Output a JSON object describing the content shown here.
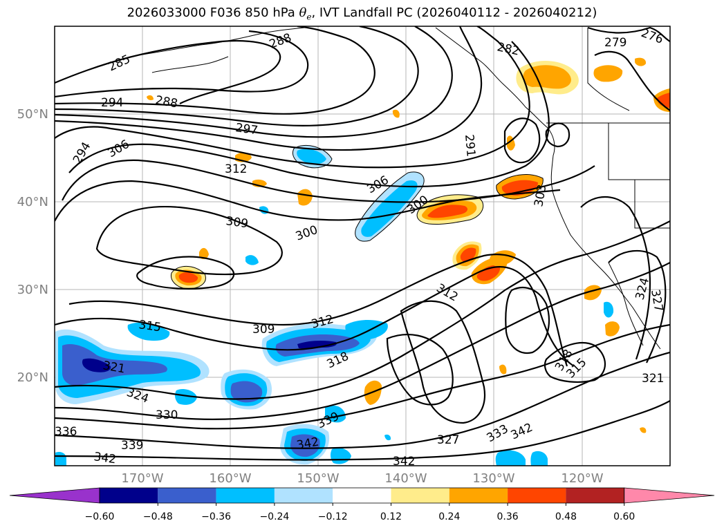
{
  "title": {
    "prefix": "2026033000 F036 850 hPa ",
    "var_base": "θ",
    "var_sub": "e",
    "suffix": ", IVT Landfall PC (2026040112 - 2026040212)"
  },
  "map": {
    "lat_labels": [
      "50°N",
      "40°N",
      "30°N",
      "20°N"
    ],
    "lon_labels": [
      "170°W",
      "160°W",
      "150°W",
      "140°W",
      "130°W",
      "120°W"
    ]
  },
  "contour_labels": [
    "285",
    "288",
    "282",
    "279",
    "276",
    "294",
    "288",
    "297",
    "291",
    "294",
    "306",
    "312",
    "306",
    "303",
    "300",
    "309",
    "300",
    "312",
    "315",
    "309",
    "312",
    "318",
    "324",
    "327",
    "321",
    "324",
    "330",
    "336",
    "339",
    "327",
    "333",
    "342",
    "318",
    "315",
    "321",
    "339",
    "342",
    "342"
  ],
  "colorbar": {
    "ticks": [
      "−0.60",
      "−0.48",
      "−0.36",
      "−0.24",
      "−0.12",
      "0.12",
      "0.24",
      "0.36",
      "0.48",
      "0.60"
    ],
    "colors": [
      "#9932CC",
      "#00008B",
      "#3A5FCD",
      "#00BFFF",
      "#B0E2FF",
      "#FFFFFF",
      "#FFEC8B",
      "#FFA500",
      "#FF4500",
      "#B22222",
      "#FF88AA"
    ]
  }
}
